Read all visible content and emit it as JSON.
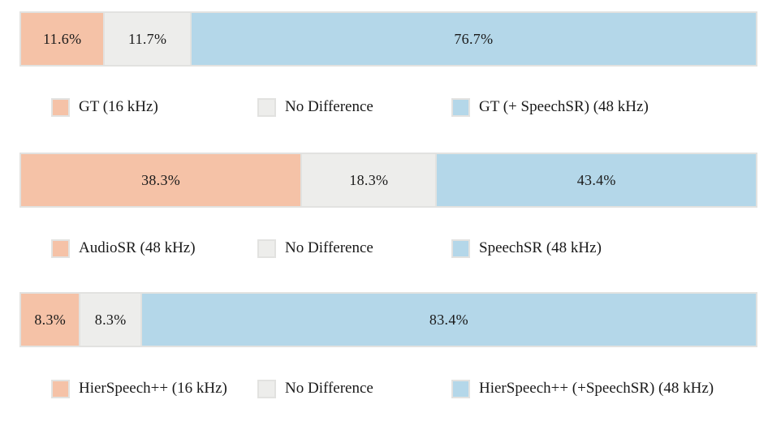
{
  "palette": {
    "left": "#f5c2a7",
    "neutral": "#ededeb",
    "right": "#b4d7e9",
    "segment_border": "#e2e2e0",
    "text": "#1a1a1a",
    "background": "#ffffff"
  },
  "chart_data": [
    {
      "type": "bar",
      "variant": "horizontal-stacked-100pct",
      "title": "",
      "xlim": [
        0,
        100
      ],
      "legend_position": "below",
      "segments": [
        {
          "label": "GT (16 kHz)",
          "value": 11.6,
          "display": "11.6%",
          "color_key": "left"
        },
        {
          "label": "No Difference",
          "value": 11.7,
          "display": "11.7%",
          "color_key": "neutral"
        },
        {
          "label": "GT (+ SpeechSR) (48 kHz)",
          "value": 76.7,
          "display": "76.7%",
          "color_key": "right"
        }
      ]
    },
    {
      "type": "bar",
      "variant": "horizontal-stacked-100pct",
      "title": "",
      "xlim": [
        0,
        100
      ],
      "legend_position": "below",
      "segments": [
        {
          "label": "AudioSR (48 kHz)",
          "value": 38.3,
          "display": "38.3%",
          "color_key": "left"
        },
        {
          "label": "No Difference",
          "value": 18.3,
          "display": "18.3%",
          "color_key": "neutral"
        },
        {
          "label": "SpeechSR (48 kHz)",
          "value": 43.4,
          "display": "43.4%",
          "color_key": "right"
        }
      ]
    },
    {
      "type": "bar",
      "variant": "horizontal-stacked-100pct",
      "title": "",
      "xlim": [
        0,
        100
      ],
      "legend_position": "below",
      "segments": [
        {
          "label": "HierSpeech++ (16 kHz)",
          "value": 8.3,
          "display": "8.3%",
          "color_key": "left"
        },
        {
          "label": "No Difference",
          "value": 8.3,
          "display": "8.3%",
          "color_key": "neutral"
        },
        {
          "label": "HierSpeech++ (+SpeechSR) (48 kHz)",
          "value": 83.4,
          "display": "83.4%",
          "color_key": "right"
        }
      ]
    }
  ]
}
